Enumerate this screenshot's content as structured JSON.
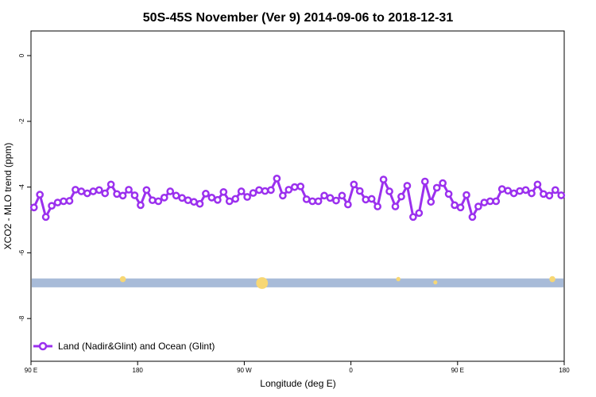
{
  "chart_data": {
    "type": "line",
    "title": "50S-45S November (Ver 9)   2014-09-06 to 2018-12-31",
    "xlabel": "Longitude (deg E)",
    "ylabel": "XCO2 - MLO trend (ppm)",
    "xlim": [
      90,
      450
    ],
    "ylim": [
      -9.3,
      0.75
    ],
    "x_ticks": [
      {
        "value": 90,
        "label": "90 E"
      },
      {
        "value": 162,
        "label": "180"
      },
      {
        "value": 234,
        "label": "90 W"
      },
      {
        "value": 306,
        "label": "0"
      },
      {
        "value": 378,
        "label": "90 E"
      },
      {
        "value": 450,
        "label": "180"
      }
    ],
    "y_ticks": [
      {
        "value": 0,
        "label": "0"
      },
      {
        "value": -2,
        "label": "-2"
      },
      {
        "value": -4,
        "label": "-4"
      },
      {
        "value": -6,
        "label": "-6"
      },
      {
        "value": -8,
        "label": "-8"
      }
    ],
    "grid": false,
    "legend_position": "bottom-left",
    "series": [
      {
        "name": "Land (Nadir&Glint) and Ocean (Glint)",
        "color": "#9b30ee",
        "values": [
          -4.62,
          -4.23,
          -4.91,
          -4.57,
          -4.47,
          -4.43,
          -4.42,
          -4.08,
          -4.13,
          -4.19,
          -4.13,
          -4.09,
          -4.19,
          -3.92,
          -4.21,
          -4.26,
          -4.08,
          -4.25,
          -4.55,
          -4.09,
          -4.4,
          -4.43,
          -4.32,
          -4.13,
          -4.26,
          -4.33,
          -4.4,
          -4.45,
          -4.51,
          -4.2,
          -4.32,
          -4.39,
          -4.15,
          -4.43,
          -4.36,
          -4.13,
          -4.3,
          -4.18,
          -4.09,
          -4.12,
          -4.09,
          -3.74,
          -4.26,
          -4.08,
          -4.0,
          -3.98,
          -4.37,
          -4.43,
          -4.43,
          -4.26,
          -4.33,
          -4.41,
          -4.26,
          -4.53,
          -3.92,
          -4.12,
          -4.38,
          -4.36,
          -4.59,
          -3.77,
          -4.13,
          -4.59,
          -4.29,
          -3.96,
          -4.91,
          -4.79,
          -3.83,
          -4.45,
          -4.02,
          -3.88,
          -4.21,
          -4.55,
          -4.62,
          -4.24,
          -4.91,
          -4.59,
          -4.47,
          -4.43,
          -4.43,
          -4.06,
          -4.11,
          -4.19,
          -4.12,
          -4.09,
          -4.19,
          -3.92,
          -4.21,
          -4.26,
          -4.09,
          -4.25
        ]
      }
    ],
    "data_density_band": {
      "y_range": [
        -7.05,
        -6.78
      ],
      "color": "#a8bbd8",
      "marker_color": "#f7d774",
      "markers": [
        {
          "x": 152,
          "y": -6.8,
          "size": 1
        },
        {
          "x": 246,
          "y": -6.92,
          "size": 3
        },
        {
          "x": 338,
          "y": -6.8,
          "size": 0.4
        },
        {
          "x": 363,
          "y": -6.9,
          "size": 0.3
        },
        {
          "x": 442,
          "y": -6.8,
          "size": 1
        }
      ]
    }
  },
  "icons": {
    "legend_marker": "circle-line-marker-icon"
  }
}
